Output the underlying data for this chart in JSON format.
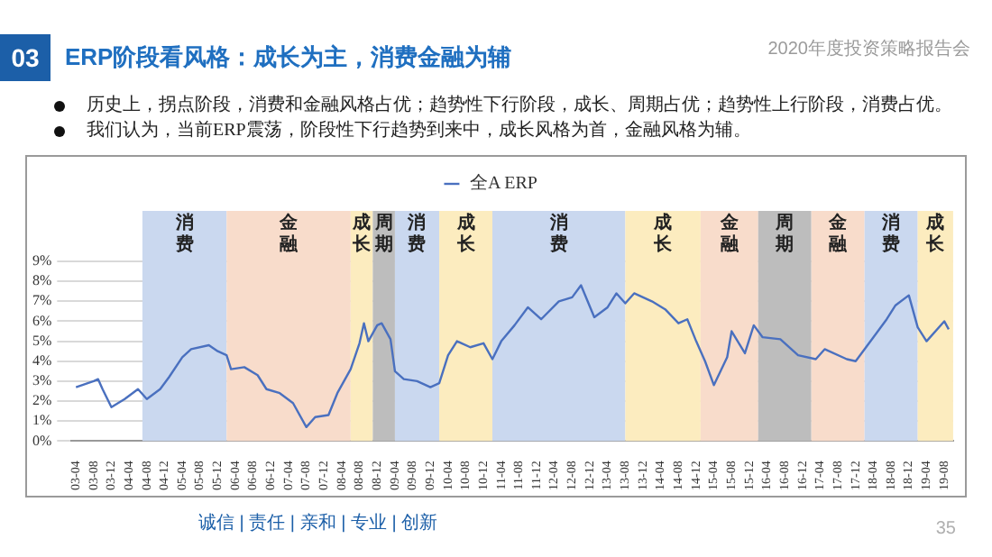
{
  "chart_data": {
    "type": "line",
    "title": "ERP阶段看风格：成长为主，消费金融为辅",
    "annotations": [
      "03",
      "2020年度投资策略报告会",
      "历史上，拐点阶段，消费和金融风格占优；趋势性下行阶段，成长、周期占优；趋势性上行阶段，消费占优。",
      "我们认为，当前ERP震荡，阶段性下行趋势到来中，成长风格为首，金融风格为辅。",
      "诚信 | 责任 | 亲和 | 专业 | 创新",
      "35"
    ],
    "x": [
      "2003-04",
      "2003-08",
      "2003-09",
      "2003-10",
      "2003-12",
      "2004-03",
      "2004-06",
      "2004-08",
      "2004-11",
      "2005-01",
      "2005-04",
      "2005-06",
      "2005-10",
      "2005-12",
      "2006-02",
      "2006-03",
      "2006-06",
      "2006-09",
      "2006-11",
      "2007-02",
      "2007-05",
      "2007-08",
      "2007-10",
      "2008-01",
      "2008-03",
      "2008-06",
      "2008-08",
      "2008-09",
      "2008-10",
      "2008-12",
      "2009-01",
      "2009-03",
      "2009-04",
      "2009-06",
      "2009-09",
      "2009-12",
      "2010-02",
      "2010-04",
      "2010-06",
      "2010-09",
      "2010-12",
      "2011-02",
      "2011-04",
      "2011-07",
      "2011-10",
      "2012-01",
      "2012-05",
      "2012-08",
      "2012-10",
      "2013-01",
      "2013-04",
      "2013-06",
      "2013-08",
      "2013-10",
      "2014-02",
      "2014-05",
      "2014-08",
      "2014-10",
      "2014-12",
      "2015-02",
      "2015-04",
      "2015-07",
      "2015-08",
      "2015-11",
      "2016-01",
      "2016-03",
      "2016-07",
      "2016-11",
      "2017-03",
      "2017-05",
      "2017-10",
      "2017-12",
      "2018-02",
      "2018-04",
      "2018-07",
      "2018-09",
      "2018-12",
      "2019-02",
      "2019-04",
      "2019-08",
      "2019-09"
    ],
    "series": [
      {
        "name": "全A ERP",
        "color": "#4a70bf",
        "values": [
          2.7,
          3.0,
          3.1,
          2.6,
          1.7,
          2.1,
          2.6,
          2.1,
          2.6,
          3.2,
          4.2,
          4.6,
          4.8,
          4.5,
          4.3,
          3.6,
          3.7,
          3.3,
          2.6,
          2.4,
          1.9,
          0.7,
          1.2,
          1.3,
          2.4,
          3.6,
          4.9,
          5.9,
          5.0,
          5.8,
          5.9,
          5.1,
          3.5,
          3.1,
          3.0,
          2.7,
          2.9,
          4.3,
          5.0,
          4.7,
          4.9,
          4.1,
          5.0,
          5.8,
          6.7,
          6.1,
          7.0,
          7.2,
          7.8,
          6.2,
          6.7,
          7.4,
          6.9,
          7.4,
          7.0,
          6.6,
          5.9,
          6.1,
          5.0,
          4.0,
          2.8,
          4.2,
          5.5,
          4.4,
          5.8,
          5.2,
          5.1,
          4.3,
          4.1,
          4.6,
          4.1,
          4.0,
          4.6,
          5.2,
          6.1,
          6.8,
          7.3,
          5.7,
          5.0,
          6.0,
          5.6
        ]
      }
    ],
    "xlim": [
      "2003-03",
      "2019-10"
    ],
    "xticks": [
      {
        "value": "2003-04",
        "label": "03-04"
      },
      {
        "value": "2003-08",
        "label": "03-08"
      },
      {
        "value": "2003-12",
        "label": "03-12"
      },
      {
        "value": "2004-04",
        "label": "04-04"
      },
      {
        "value": "2004-08",
        "label": "04-08"
      },
      {
        "value": "2004-12",
        "label": "04-12"
      },
      {
        "value": "2005-04",
        "label": "05-04"
      },
      {
        "value": "2005-08",
        "label": "05-08"
      },
      {
        "value": "2005-12",
        "label": "05-12"
      },
      {
        "value": "2006-04",
        "label": "06-04"
      },
      {
        "value": "2006-08",
        "label": "06-08"
      },
      {
        "value": "2006-12",
        "label": "06-12"
      },
      {
        "value": "2007-04",
        "label": "07-04"
      },
      {
        "value": "2007-08",
        "label": "07-08"
      },
      {
        "value": "2007-12",
        "label": "07-12"
      },
      {
        "value": "2008-04",
        "label": "08-04"
      },
      {
        "value": "2008-08",
        "label": "08-08"
      },
      {
        "value": "2008-12",
        "label": "08-12"
      },
      {
        "value": "2009-04",
        "label": "09-04"
      },
      {
        "value": "2009-08",
        "label": "09-08"
      },
      {
        "value": "2009-12",
        "label": "09-12"
      },
      {
        "value": "2010-04",
        "label": "10-04"
      },
      {
        "value": "2010-08",
        "label": "10-08"
      },
      {
        "value": "2010-12",
        "label": "10-12"
      },
      {
        "value": "2011-04",
        "label": "11-04"
      },
      {
        "value": "2011-08",
        "label": "11-08"
      },
      {
        "value": "2011-12",
        "label": "11-12"
      },
      {
        "value": "2012-04",
        "label": "12-04"
      },
      {
        "value": "2012-08",
        "label": "12-08"
      },
      {
        "value": "2012-12",
        "label": "12-12"
      },
      {
        "value": "2013-04",
        "label": "13-04"
      },
      {
        "value": "2013-08",
        "label": "13-08"
      },
      {
        "value": "2013-12",
        "label": "13-12"
      },
      {
        "value": "2014-04",
        "label": "14-04"
      },
      {
        "value": "2014-08",
        "label": "14-08"
      },
      {
        "value": "2014-12",
        "label": "14-12"
      },
      {
        "value": "2015-04",
        "label": "15-04"
      },
      {
        "value": "2015-08",
        "label": "15-08"
      },
      {
        "value": "2015-12",
        "label": "15-12"
      },
      {
        "value": "2016-04",
        "label": "16-04"
      },
      {
        "value": "2016-08",
        "label": "16-08"
      },
      {
        "value": "2016-12",
        "label": "16-12"
      },
      {
        "value": "2017-04",
        "label": "17-04"
      },
      {
        "value": "2017-08",
        "label": "17-08"
      },
      {
        "value": "2017-12",
        "label": "17-12"
      },
      {
        "value": "2018-04",
        "label": "18-04"
      },
      {
        "value": "2018-08",
        "label": "18-08"
      },
      {
        "value": "2018-12",
        "label": "18-12"
      },
      {
        "value": "2019-04",
        "label": "19-04"
      },
      {
        "value": "2019-08",
        "label": "19-08"
      }
    ],
    "ylim": [
      0,
      9
    ],
    "yticks": [
      {
        "value": 0,
        "label": "0%"
      },
      {
        "value": 1,
        "label": "1%"
      },
      {
        "value": 2,
        "label": "2%"
      },
      {
        "value": 3,
        "label": "3%"
      },
      {
        "value": 4,
        "label": "4%"
      },
      {
        "value": 5,
        "label": "5%"
      },
      {
        "value": 6,
        "label": "6%"
      },
      {
        "value": 7,
        "label": "7%"
      },
      {
        "value": 8,
        "label": "8%"
      },
      {
        "value": 9,
        "label": "9%"
      }
    ],
    "bands": [
      {
        "axis": "x",
        "from": "2004-07",
        "to": "2006-02",
        "label": "消费",
        "color": "#cad8ef"
      },
      {
        "axis": "x",
        "from": "2006-02",
        "to": "2008-06",
        "label": "金融",
        "color": "#f8dccb"
      },
      {
        "axis": "x",
        "from": "2008-06",
        "to": "2008-11",
        "label": "成长",
        "color": "#fcecbf"
      },
      {
        "axis": "x",
        "from": "2008-11",
        "to": "2009-04",
        "label": "周期",
        "color": "#bdbdbd"
      },
      {
        "axis": "x",
        "from": "2009-04",
        "to": "2010-02",
        "label": "消费",
        "color": "#cad8ef"
      },
      {
        "axis": "x",
        "from": "2010-02",
        "to": "2011-02",
        "label": "成长",
        "color": "#fcecbf"
      },
      {
        "axis": "x",
        "from": "2011-02",
        "to": "2013-08",
        "label": "消费",
        "color": "#cad8ef"
      },
      {
        "axis": "x",
        "from": "2013-08",
        "to": "2015-01",
        "label": "成长",
        "color": "#fcecbf"
      },
      {
        "axis": "x",
        "from": "2015-01",
        "to": "2016-02",
        "label": "金融",
        "color": "#f8dccb"
      },
      {
        "axis": "x",
        "from": "2016-02",
        "to": "2017-02",
        "label": "周期",
        "color": "#bdbdbd"
      },
      {
        "axis": "x",
        "from": "2017-02",
        "to": "2018-02",
        "label": "金融",
        "color": "#f8dccb"
      },
      {
        "axis": "x",
        "from": "2018-02",
        "to": "2019-02",
        "label": "消费",
        "color": "#cad8ef"
      },
      {
        "axis": "x",
        "from": "2019-02",
        "to": "2019-10",
        "label": "成长",
        "color": "#fcecbf"
      }
    ],
    "grid": "y",
    "legend": "top",
    "marker": "none",
    "line_style": "solid"
  }
}
